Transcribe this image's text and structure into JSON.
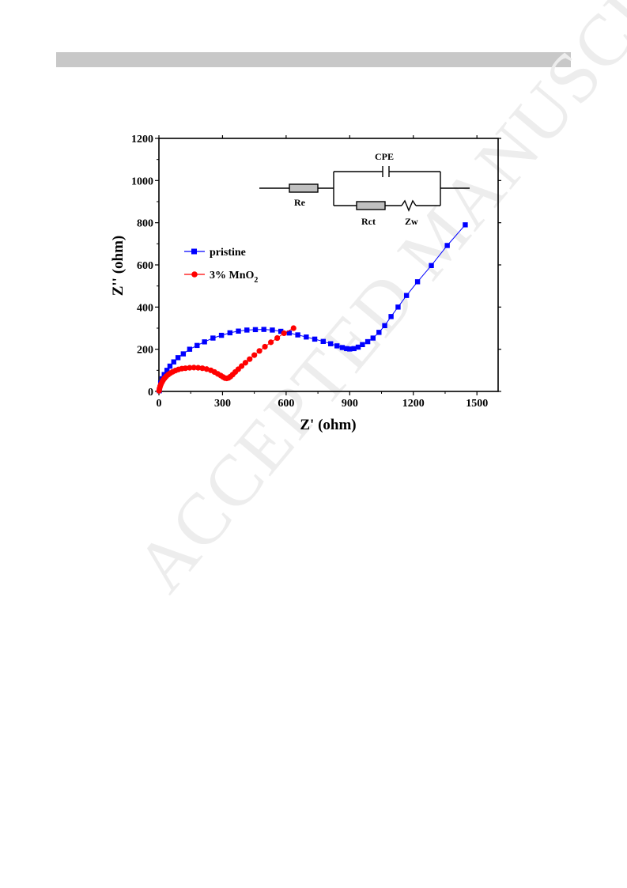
{
  "watermark": {
    "text": "ACCEPTED MANUSCRIPT"
  },
  "chart_data": {
    "type": "scatter",
    "xlabel": "Z' (ohm)",
    "ylabel": "Z'' (ohm)",
    "xlim": [
      0,
      1600
    ],
    "ylim": [
      0,
      1200
    ],
    "xticks": [
      0,
      300,
      600,
      900,
      1200,
      1500
    ],
    "yticks": [
      0,
      200,
      400,
      600,
      800,
      1000,
      1200
    ],
    "grid": false,
    "legend_position": "center-left",
    "series": [
      {
        "name": "pristine",
        "color": "#0000ff",
        "marker": "square",
        "points": [
          [
            2,
            3
          ],
          [
            8,
            40
          ],
          [
            15,
            60
          ],
          [
            25,
            80
          ],
          [
            38,
            100
          ],
          [
            52,
            120
          ],
          [
            70,
            140
          ],
          [
            90,
            160
          ],
          [
            115,
            178
          ],
          [
            145,
            200
          ],
          [
            180,
            218
          ],
          [
            215,
            235
          ],
          [
            255,
            253
          ],
          [
            295,
            266
          ],
          [
            335,
            278
          ],
          [
            375,
            286
          ],
          [
            415,
            291
          ],
          [
            455,
            293
          ],
          [
            495,
            294
          ],
          [
            535,
            291
          ],
          [
            575,
            285
          ],
          [
            615,
            277
          ],
          [
            655,
            268
          ],
          [
            695,
            258
          ],
          [
            735,
            248
          ],
          [
            775,
            237
          ],
          [
            810,
            226
          ],
          [
            840,
            216
          ],
          [
            865,
            208
          ],
          [
            885,
            203
          ],
          [
            900,
            201
          ],
          [
            920,
            203
          ],
          [
            940,
            210
          ],
          [
            960,
            222
          ],
          [
            985,
            236
          ],
          [
            1010,
            253
          ],
          [
            1038,
            280
          ],
          [
            1065,
            312
          ],
          [
            1095,
            355
          ],
          [
            1128,
            400
          ],
          [
            1168,
            455
          ],
          [
            1220,
            520
          ],
          [
            1285,
            597
          ],
          [
            1360,
            692
          ],
          [
            1445,
            790
          ]
        ]
      },
      {
        "name": "3% MnO2",
        "color": "#ff0000",
        "marker": "circle",
        "points": [
          [
            1,
            3
          ],
          [
            3,
            15
          ],
          [
            6,
            25
          ],
          [
            10,
            35
          ],
          [
            15,
            45
          ],
          [
            20,
            54
          ],
          [
            27,
            63
          ],
          [
            35,
            72
          ],
          [
            44,
            80
          ],
          [
            54,
            87
          ],
          [
            65,
            93
          ],
          [
            78,
            99
          ],
          [
            92,
            104
          ],
          [
            108,
            108
          ],
          [
            125,
            110
          ],
          [
            145,
            112
          ],
          [
            165,
            113
          ],
          [
            185,
            112
          ],
          [
            205,
            110
          ],
          [
            225,
            106
          ],
          [
            245,
            100
          ],
          [
            262,
            92
          ],
          [
            278,
            83
          ],
          [
            292,
            75
          ],
          [
            303,
            68
          ],
          [
            312,
            63
          ],
          [
            320,
            62
          ],
          [
            328,
            64
          ],
          [
            337,
            70
          ],
          [
            348,
            80
          ],
          [
            360,
            92
          ],
          [
            374,
            105
          ],
          [
            390,
            120
          ],
          [
            408,
            136
          ],
          [
            428,
            153
          ],
          [
            450,
            172
          ],
          [
            474,
            192
          ],
          [
            500,
            212
          ],
          [
            528,
            233
          ],
          [
            558,
            253
          ],
          [
            590,
            276
          ],
          [
            635,
            300
          ]
        ]
      }
    ],
    "legend": [
      {
        "label": "pristine",
        "sub": ""
      },
      {
        "label": "3% MnO",
        "sub": "2"
      }
    ],
    "inset_circuit": {
      "labels": {
        "cpe": "CPE",
        "re": "Re",
        "rct": "Rct",
        "zw": "Zw"
      }
    }
  }
}
